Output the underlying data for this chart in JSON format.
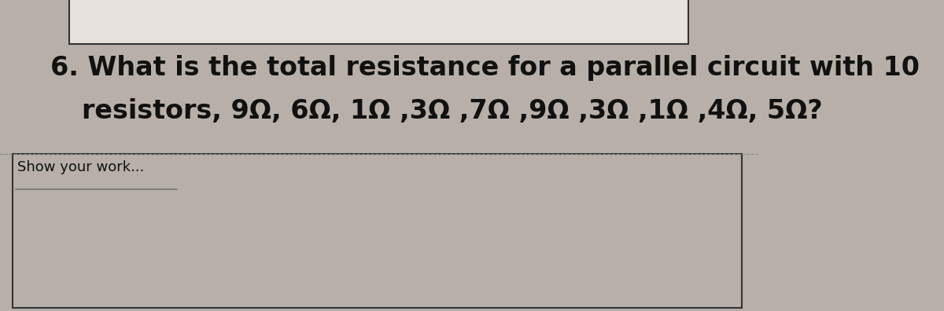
{
  "background_color": "#b8b0a8",
  "white_box_color": "#e8e2dc",
  "answer_box_color": "#b8b0a8",
  "line1": "6. What is the total resistance for a parallel circuit with 10",
  "line2": "resistors, 9Ω, 6Ω, 1Ω ,3Ω ,7Ω ,9Ω ,3Ω ,1Ω ,4Ω, 5Ω?",
  "show_work_label": "Show your work...",
  "text_color": "#111111",
  "text_fontsize_main": 24,
  "text_fontsize_label": 13,
  "box_border_color": "#333333",
  "line_color": "#777777",
  "dashed_line_color": "#888888"
}
